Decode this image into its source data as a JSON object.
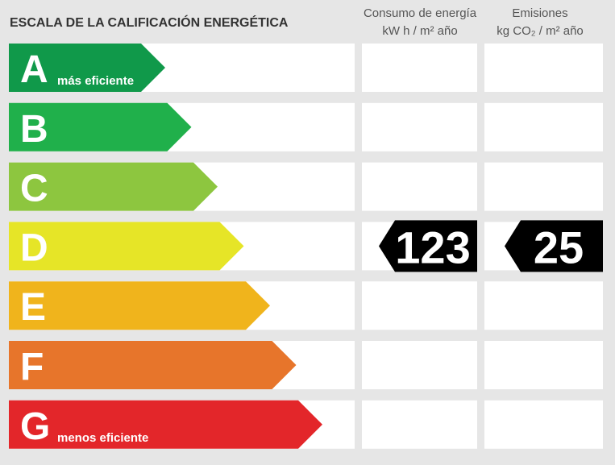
{
  "header": {
    "title": "ESCALA DE LA CALIFICACIÓN ENERGÉTICA",
    "consumption": {
      "line1": "Consumo de energía",
      "line2": "kW h  / m² año"
    },
    "emissions": {
      "line1": "Emisiones",
      "line2": "kg CO₂  / m² año"
    }
  },
  "rows": [
    {
      "letter": "A",
      "label": "más eficiente",
      "color": "#10994a"
    },
    {
      "letter": "B",
      "color": "#20b04b"
    },
    {
      "letter": "C",
      "color": "#8dc63f"
    },
    {
      "letter": "D",
      "color": "#e6e527",
      "consumption": 123,
      "emissions": 25
    },
    {
      "letter": "E",
      "color": "#f0b41c"
    },
    {
      "letter": "F",
      "color": "#e7752b"
    },
    {
      "letter": "G",
      "label": "menos eficiente",
      "color": "#e3262a"
    }
  ]
}
